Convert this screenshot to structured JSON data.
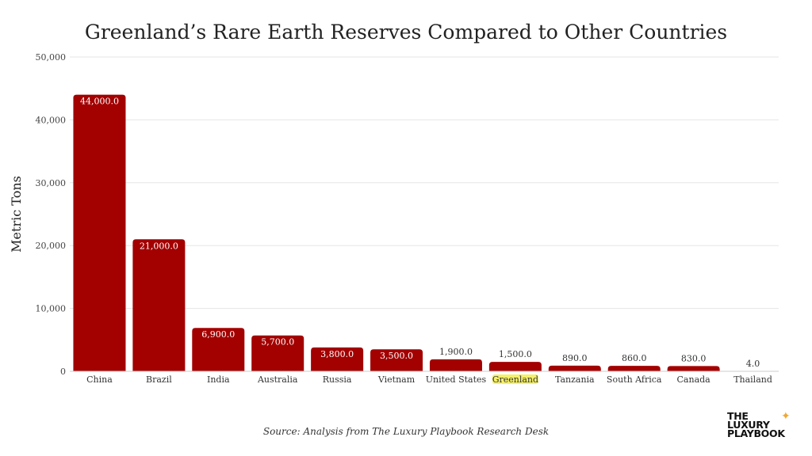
{
  "chart_data": {
    "type": "bar",
    "title": "Greenland’s Rare Earth Reserves Compared to Other Countries",
    "xlabel": "",
    "ylabel": "Metric Tons",
    "categories": [
      "China",
      "Brazil",
      "India",
      "Australia",
      "Russia",
      "Vietnam",
      "United States",
      "Greenland",
      "Tanzania",
      "South Africa",
      "Canada",
      "Thailand"
    ],
    "values": [
      44000,
      21000,
      6900,
      5700,
      3800,
      3500,
      1900,
      1500,
      890,
      860,
      830,
      4
    ],
    "data_labels": [
      "44,000.0",
      "21,000.0",
      "6,900.0",
      "5,700.0",
      "3,800.0",
      "3,500.0",
      "1,900.0",
      "1,500.0",
      "890.0",
      "860.0",
      "830.0",
      "4.0"
    ],
    "ylim": [
      0,
      50000
    ],
    "yticks": [
      0,
      10000,
      20000,
      30000,
      40000,
      50000
    ],
    "ytick_labels": [
      "0",
      "10,000",
      "20,000",
      "30,000",
      "40,000",
      "50,000"
    ],
    "grid": true,
    "highlight_category": "Greenland",
    "colors": {
      "bar": "#a30000",
      "highlight": "#f5f06a",
      "grid": "#e6e6e6"
    }
  },
  "source": "Source: Analysis from The Luxury Playbook Research Desk",
  "logo": {
    "lines": [
      "THE",
      "LUXURY",
      "PLAYBOOK"
    ],
    "icon": "sparkle-star-icon"
  }
}
